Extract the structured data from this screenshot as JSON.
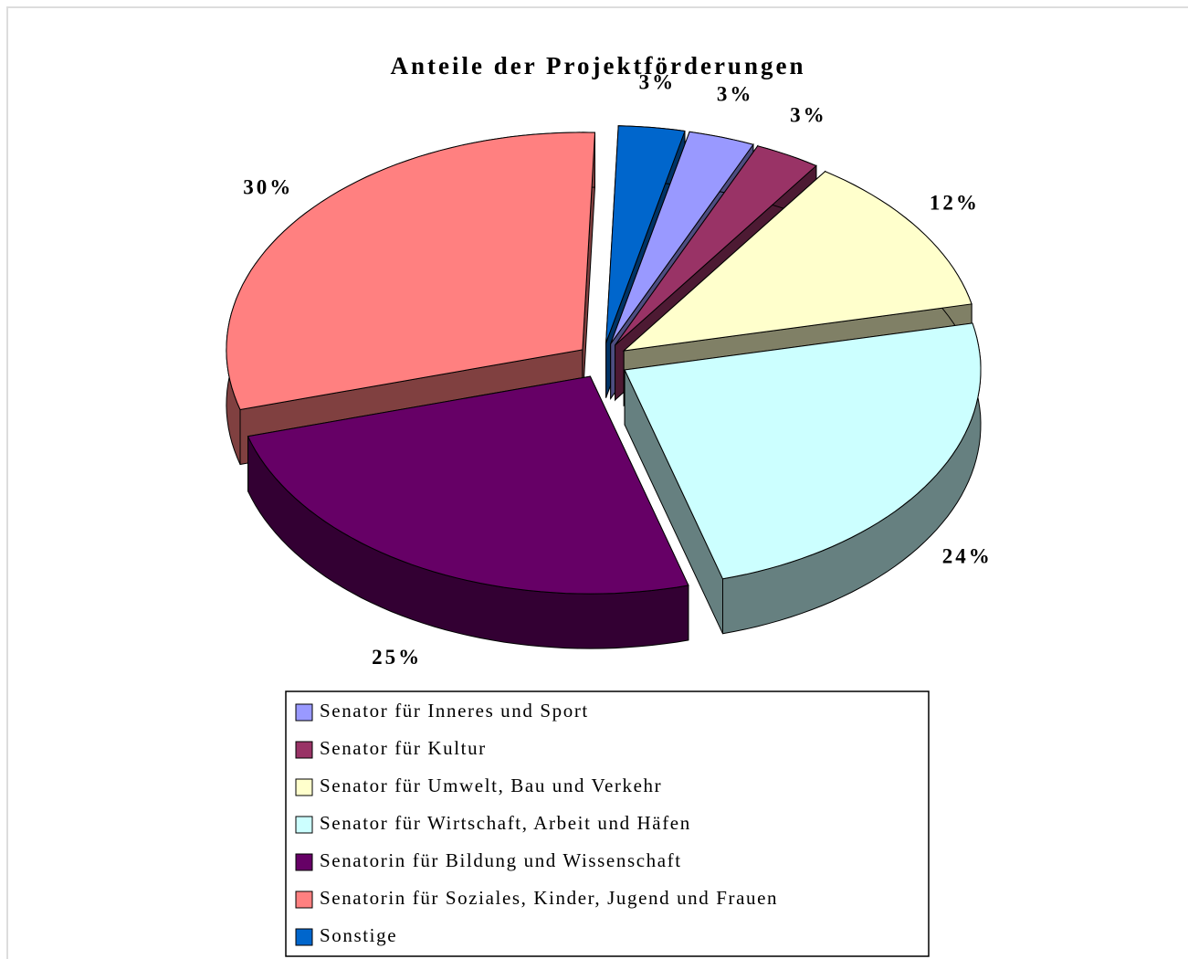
{
  "chart_data": {
    "type": "pie3d",
    "title": "Anteile der Projektförderungen",
    "categories": [
      "Senator für Inneres und Sport",
      "Senator für Kultur",
      "Senator für Umwelt, Bau und Verkehr",
      "Senator für Wirtschaft, Arbeit und Häfen",
      "Senatorin für Bildung und Wissenschaft",
      "Senatorin für Soziales, Kinder, Jugend und Frauen",
      "Sonstige"
    ],
    "values": [
      3,
      3,
      12,
      24,
      25,
      30,
      3
    ],
    "value_labels": [
      "3%",
      "3%",
      "12%",
      "24%",
      "25%",
      "30%",
      "3%"
    ],
    "colors": [
      "#9999ff",
      "#993366",
      "#ffffcc",
      "#ccffff",
      "#660066",
      "#ff8080",
      "#0066cc"
    ],
    "legend": "bottom"
  }
}
